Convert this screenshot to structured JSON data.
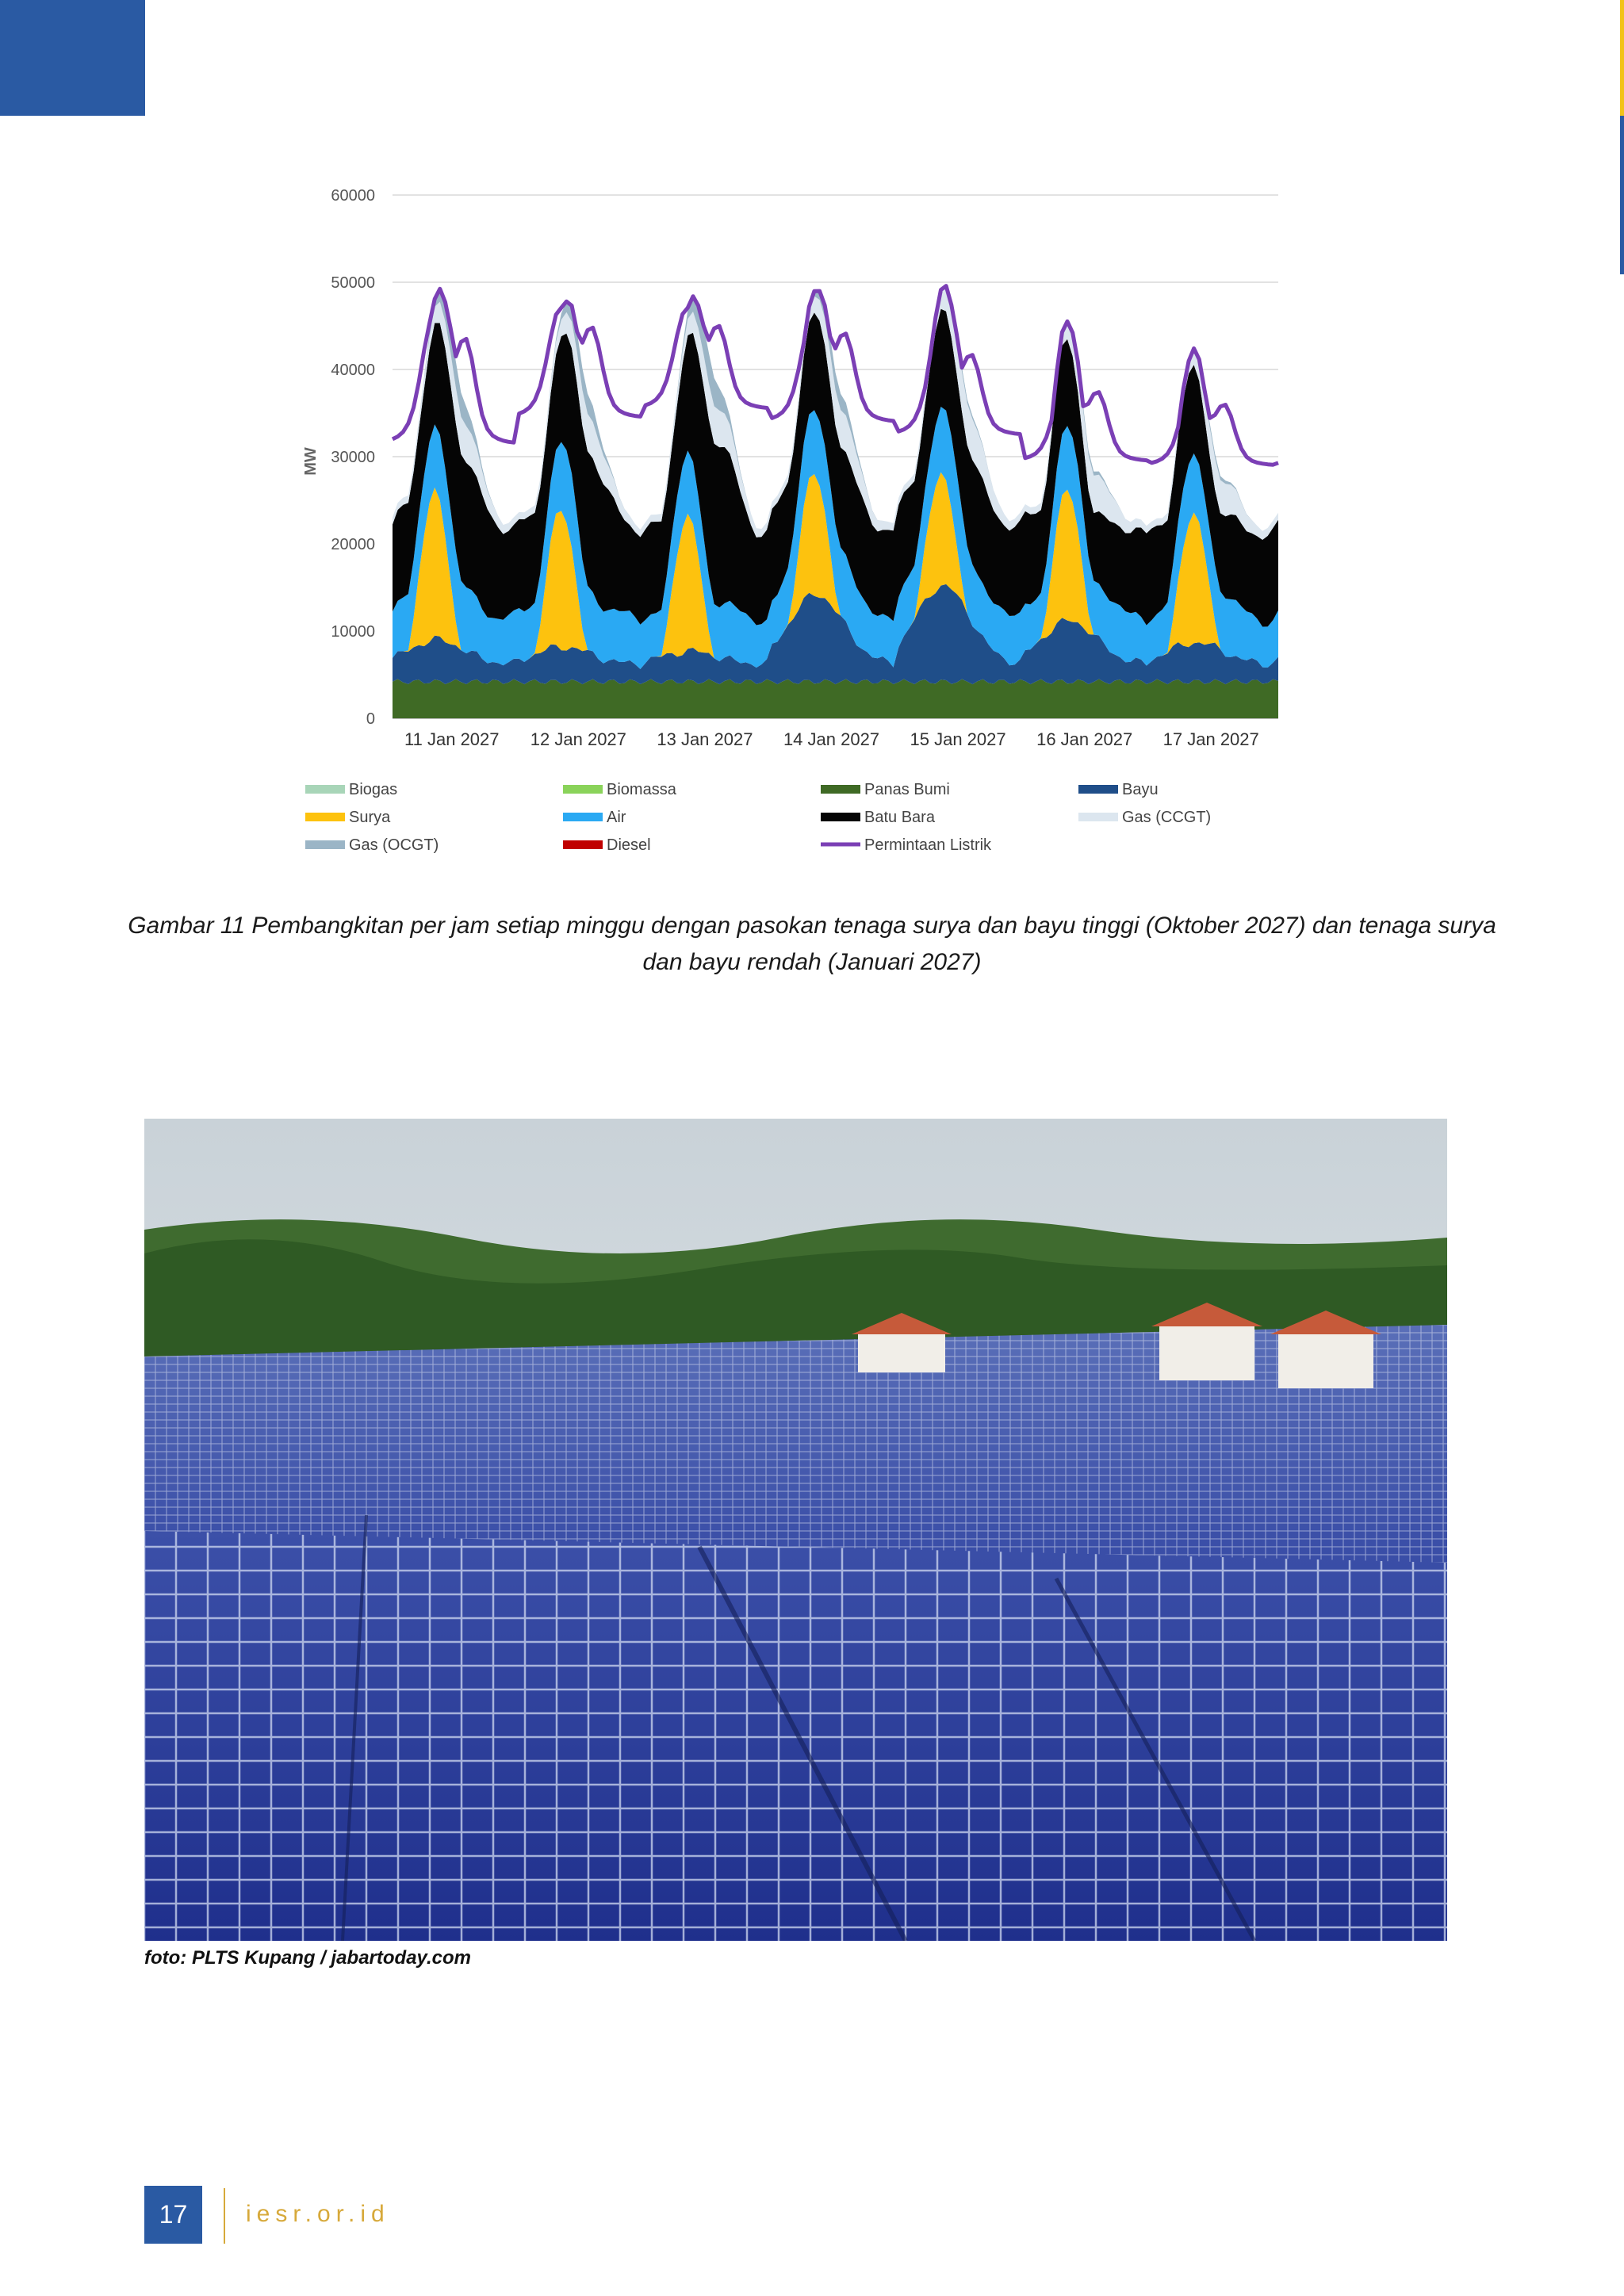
{
  "chart_data": {
    "type": "area",
    "ylabel": "MW",
    "ylim": [
      0,
      60000
    ],
    "yticks": [
      0,
      10000,
      20000,
      30000,
      40000,
      50000,
      60000
    ],
    "x_labels": [
      "11 Jan 2027",
      "12 Jan 2027",
      "13 Jan 2027",
      "14 Jan 2027",
      "15 Jan 2027",
      "16 Jan 2027",
      "17 Jan 2027"
    ],
    "legend": [
      {
        "name": "Biogas",
        "color": "#a8d5b8"
      },
      {
        "name": "Biomassa",
        "color": "#8ad35a"
      },
      {
        "name": "Panas Bumi",
        "color": "#3f6a25"
      },
      {
        "name": "Bayu",
        "color": "#1f4e89"
      },
      {
        "name": "Surya",
        "color": "#fdc20e"
      },
      {
        "name": "Air",
        "color": "#2aa9f3"
      },
      {
        "name": "Batu Bara",
        "color": "#050505"
      },
      {
        "name": "Gas (CCGT)",
        "color": "#dce6ef"
      },
      {
        "name": "Gas (OCGT)",
        "color": "#9bb5c6"
      },
      {
        "name": "Diesel",
        "color": "#c00000"
      },
      {
        "name": "Permintaan Listrik",
        "color": "#7b3fb5"
      }
    ],
    "days": [
      {
        "label": "11 Jan 2027",
        "panas_bumi": 4200,
        "bayu_peak": 4800,
        "surya_peak": 17000,
        "air_peak": 8000,
        "batu_bara_peak": 15000,
        "ccgt_peak": 3500,
        "ocgt_peak": 3000,
        "demand_peak": 50500,
        "demand_min": 31500
      },
      {
        "label": "12 Jan 2027",
        "panas_bumi": 4200,
        "bayu_peak": 4000,
        "surya_peak": 16000,
        "air_peak": 8000,
        "batu_bara_peak": 16000,
        "ccgt_peak": 3500,
        "ocgt_peak": 2500,
        "demand_peak": 50800,
        "demand_min": 34500
      },
      {
        "label": "13 Jan 2027",
        "panas_bumi": 4200,
        "bayu_peak": 3500,
        "surya_peak": 15500,
        "air_peak": 7000,
        "batu_bara_peak": 19000,
        "ccgt_peak": 3500,
        "ocgt_peak": 3500,
        "demand_peak": 50500,
        "demand_min": 35500
      },
      {
        "label": "14 Jan 2027",
        "panas_bumi": 4200,
        "bayu_peak": 10000,
        "surya_peak": 14000,
        "air_peak": 8000,
        "batu_bara_peak": 12000,
        "ccgt_peak": 3500,
        "ocgt_peak": 2000,
        "demand_peak": 50000,
        "demand_min": 34000
      },
      {
        "label": "15 Jan 2027",
        "panas_bumi": 4200,
        "bayu_peak": 11000,
        "surya_peak": 13000,
        "air_peak": 8000,
        "batu_bara_peak": 12000,
        "ccgt_peak": 4000,
        "ocgt_peak": 500,
        "demand_peak": 47000,
        "demand_min": 32500
      },
      {
        "label": "16 Jan 2027",
        "panas_bumi": 4200,
        "bayu_peak": 7000,
        "surya_peak": 15000,
        "air_peak": 7000,
        "batu_bara_peak": 8000,
        "ccgt_peak": 3500,
        "ocgt_peak": 500,
        "demand_peak": 42000,
        "demand_min": 29500
      },
      {
        "label": "17 Jan 2027",
        "panas_bumi": 4200,
        "bayu_peak": 4500,
        "surya_peak": 15000,
        "air_peak": 7000,
        "batu_bara_peak": 9000,
        "ccgt_peak": 3000,
        "ocgt_peak": 500,
        "demand_peak": 40000,
        "demand_min": 29000
      }
    ]
  },
  "caption": "Gambar 11 Pembangkitan per jam setiap minggu dengan pasokan tenaga surya dan bayu tinggi (Oktober 2027) dan tenaga surya dan bayu rendah (Januari 2027)",
  "photo_credit": "foto: PLTS Kupang / jabartoday.com",
  "footer": {
    "page_number": "17",
    "site": "iesr.or.id"
  }
}
